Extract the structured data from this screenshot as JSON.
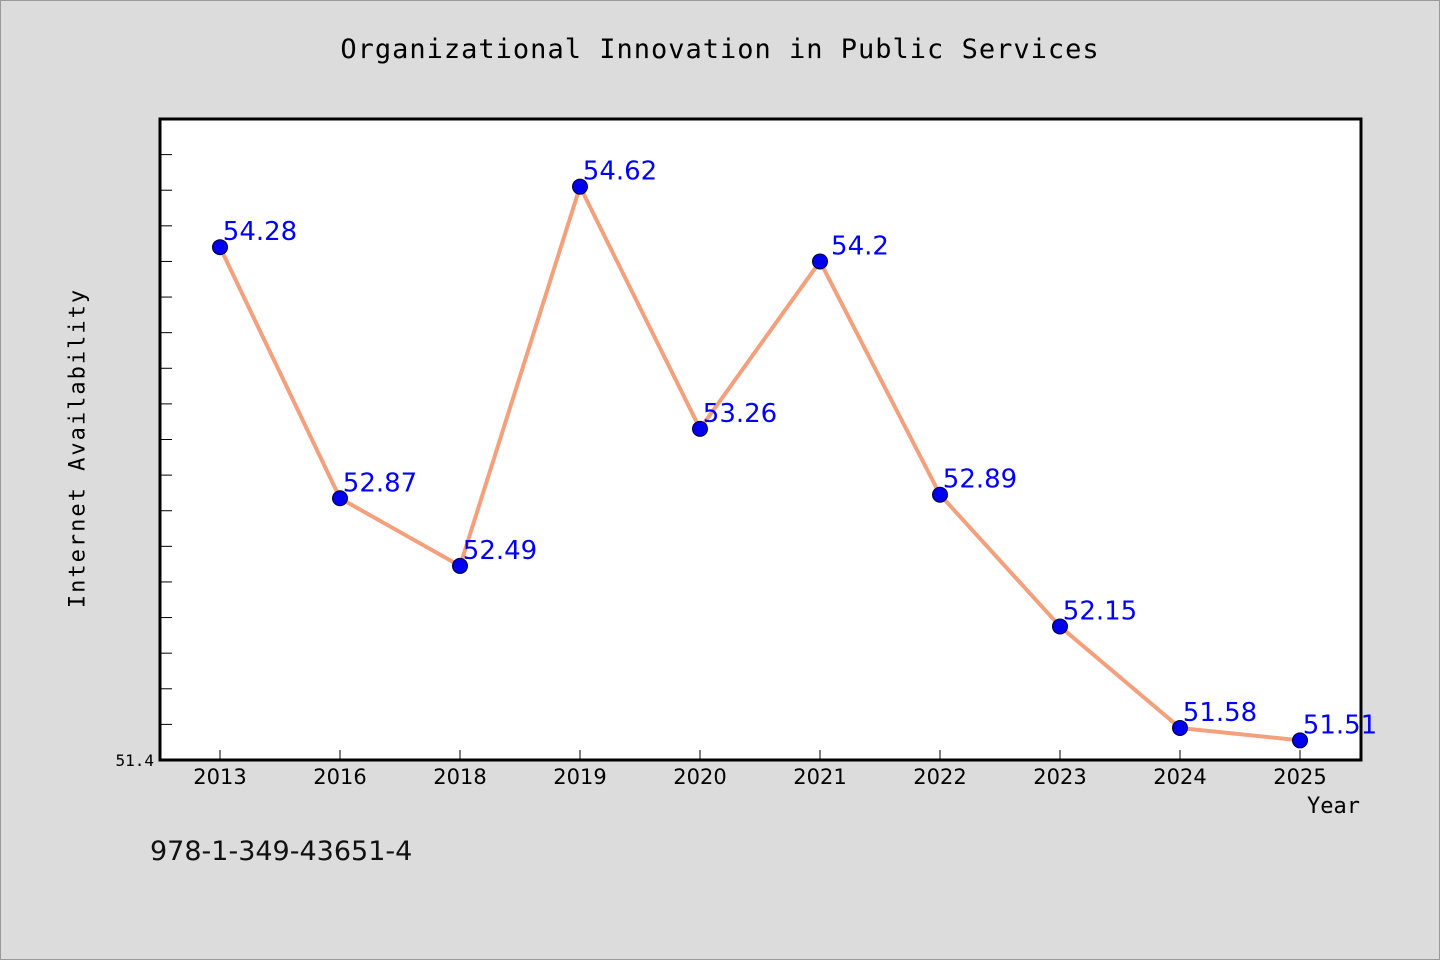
{
  "chart_data": {
    "type": "line",
    "title": "Organizational Innovation in Public Services",
    "xlabel": "Year",
    "ylabel": "Internet Availability",
    "categories": [
      "2013",
      "2016",
      "2018",
      "2019",
      "2020",
      "2021",
      "2022",
      "2023",
      "2024",
      "2025"
    ],
    "series": [
      {
        "values": [
          54.28,
          52.87,
          52.49,
          54.62,
          53.26,
          54.2,
          52.89,
          52.15,
          51.58,
          51.51
        ],
        "labels": [
          "54.28",
          "52.87",
          "52.49",
          "54.62",
          "53.26",
          "54.2",
          "52.89",
          "52.15",
          "51.58",
          "51.51"
        ],
        "line_color": "#f4a07c",
        "marker_color": "#0000ee",
        "label_color": "#0000ff"
      }
    ],
    "ylim": [
      51.4,
      55.0
    ],
    "y_min_label": "51.4",
    "grid": false,
    "legend": "none",
    "background": "#ffffff",
    "page_background": "#dcdcdc"
  },
  "footer": {
    "isbn": "978-1-349-43651-4"
  }
}
